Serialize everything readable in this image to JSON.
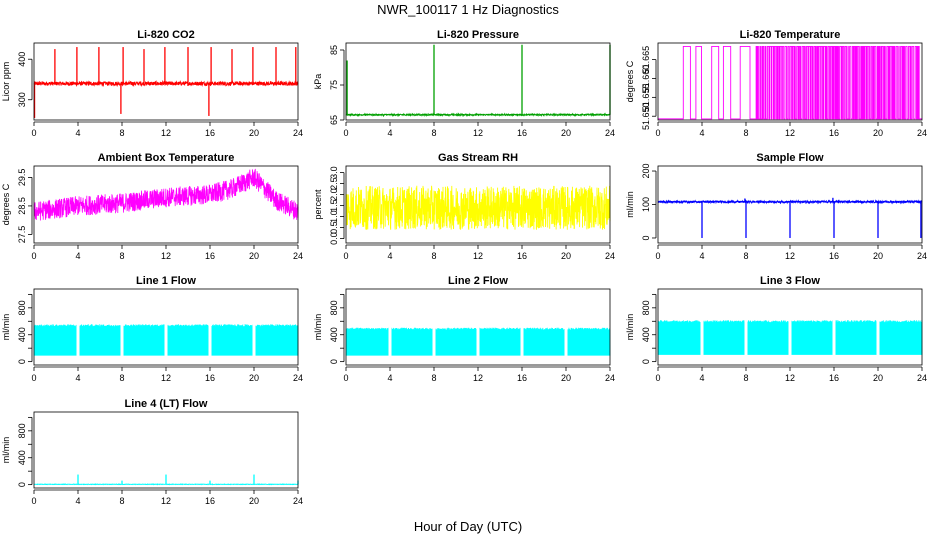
{
  "figure": {
    "title": "NWR_100117  1 Hz Diagnostics",
    "xlabel": "Hour of Day (UTC)"
  },
  "chart_data": [
    {
      "type": "line",
      "title": "Li-820 CO2",
      "ylabel": "Licor ppm",
      "color": "#ff0000",
      "xlim": [
        0,
        24
      ],
      "xticks": [
        0,
        4,
        8,
        12,
        16,
        20,
        24
      ],
      "ylim": [
        250,
        440
      ],
      "yticks": [
        300,
        400
      ],
      "ytick_labels": [
        "300",
        "400"
      ],
      "baseline": 340,
      "noise": 5,
      "spikes": [
        {
          "x": 0.05,
          "y": 255
        },
        {
          "x": 1.9,
          "y": 425
        },
        {
          "x": 3.9,
          "y": 430
        },
        {
          "x": 5.9,
          "y": 430
        },
        {
          "x": 7.9,
          "y": 265
        },
        {
          "x": 8.1,
          "y": 430
        },
        {
          "x": 10.0,
          "y": 425
        },
        {
          "x": 11.9,
          "y": 430
        },
        {
          "x": 14.0,
          "y": 430
        },
        {
          "x": 15.9,
          "y": 260
        },
        {
          "x": 16.1,
          "y": 430
        },
        {
          "x": 18.0,
          "y": 425
        },
        {
          "x": 19.9,
          "y": 430
        },
        {
          "x": 22.0,
          "y": 430
        },
        {
          "x": 23.8,
          "y": 430
        }
      ],
      "grid": false
    },
    {
      "type": "line",
      "title": "Li-820 Pressure",
      "ylabel": "kPa",
      "color": "#00a000",
      "xlim": [
        0,
        24
      ],
      "xticks": [
        0,
        4,
        8,
        12,
        16,
        20,
        24
      ],
      "ylim": [
        65,
        87
      ],
      "yticks": [
        65,
        75,
        85
      ],
      "ytick_labels": [
        "65",
        "75",
        "85"
      ],
      "baseline": 66.5,
      "noise": 0.2,
      "spikes": [
        {
          "x": 0.1,
          "y": 82
        },
        {
          "x": 8.0,
          "y": 86.5
        },
        {
          "x": 16.0,
          "y": 86.5
        },
        {
          "x": 24.0,
          "y": 86.5
        }
      ],
      "grid": false
    },
    {
      "type": "line",
      "title": "Li-820 Temperature",
      "ylabel": "degrees C",
      "color": "#ff00ff",
      "xlim": [
        0,
        24
      ],
      "xticks": [
        0,
        4,
        8,
        12,
        16,
        20,
        24
      ],
      "ylim": [
        51.649,
        51.6694
      ],
      "yticks": [
        51.65,
        51.655,
        51.66,
        51.665
      ],
      "ytick_labels": [
        "51.650",
        "51.655",
        "51.660",
        "51.665"
      ],
      "low": 51.6493,
      "high": 51.6685,
      "toggle_start": 2.3,
      "grid": false
    },
    {
      "type": "line",
      "title": "Ambient Box Temperature",
      "ylabel": "degrees C",
      "color": "#ff00ff",
      "xlim": [
        0,
        24
      ],
      "xticks": [
        0,
        4,
        8,
        12,
        16,
        20,
        24
      ],
      "ylim": [
        27.2,
        29.9
      ],
      "yticks": [
        27.5,
        28.5,
        29.5
      ],
      "ytick_labels": [
        "27.5",
        "28.5",
        "29.5"
      ],
      "trend": [
        {
          "x": 0,
          "y": 28.3
        },
        {
          "x": 4,
          "y": 28.5
        },
        {
          "x": 8,
          "y": 28.6
        },
        {
          "x": 12,
          "y": 28.8
        },
        {
          "x": 16,
          "y": 28.9
        },
        {
          "x": 18,
          "y": 29.1
        },
        {
          "x": 20,
          "y": 29.5
        },
        {
          "x": 22,
          "y": 28.7
        },
        {
          "x": 24,
          "y": 28.3
        }
      ],
      "noise": 0.35,
      "grid": false
    },
    {
      "type": "line",
      "title": "Gas Stream RH",
      "ylabel": "percent",
      "color": "#ffff00",
      "xlim": [
        0,
        24
      ],
      "xticks": [
        0,
        4,
        8,
        12,
        16,
        20,
        24
      ],
      "ylim": [
        -0.2,
        3.3
      ],
      "yticks": [
        0,
        0.5,
        1.0,
        1.5,
        2.0,
        2.5,
        3.0
      ],
      "ytick_labels": [
        "0.0",
        "0.5",
        "1.0",
        "1.5",
        "2.0",
        "2.5",
        "3.0"
      ],
      "baseline": 1.4,
      "noise": 1.0,
      "grid": false
    },
    {
      "type": "line",
      "title": "Sample Flow",
      "ylabel": "ml/min",
      "color": "#0000ff",
      "xlim": [
        0,
        24
      ],
      "xticks": [
        0,
        4,
        8,
        12,
        16,
        20,
        24
      ],
      "ylim": [
        -15,
        215
      ],
      "yticks": [
        0,
        100,
        200
      ],
      "ytick_labels": [
        "0",
        "100",
        "200"
      ],
      "baseline": 108,
      "noise": 3,
      "spikes": [
        {
          "x": 3.9,
          "y": 110
        },
        {
          "x": 4.0,
          "y": 0
        },
        {
          "x": 7.9,
          "y": 118
        },
        {
          "x": 8.0,
          "y": 0
        },
        {
          "x": 11.9,
          "y": 110
        },
        {
          "x": 12.0,
          "y": 0
        },
        {
          "x": 15.9,
          "y": 120
        },
        {
          "x": 16.0,
          "y": 0
        },
        {
          "x": 19.9,
          "y": 110
        },
        {
          "x": 20.0,
          "y": 0
        },
        {
          "x": 23.8,
          "y": 110
        },
        {
          "x": 23.9,
          "y": 0
        }
      ],
      "grid": false
    },
    {
      "type": "line",
      "title": "Line 1 Flow",
      "ylabel": "ml/min",
      "color": "#00ffff",
      "xlim": [
        0,
        24
      ],
      "xticks": [
        0,
        4,
        8,
        12,
        16,
        20,
        24
      ],
      "ylim": [
        -50,
        1080
      ],
      "yticks": [
        0,
        200,
        400,
        600,
        800,
        1000
      ],
      "ytick_labels": [
        "0",
        "",
        "400",
        "",
        "800",
        ""
      ],
      "band": [
        90,
        540
      ],
      "gaps": [
        4,
        8,
        12,
        16,
        20
      ],
      "grid": false
    },
    {
      "type": "line",
      "title": "Line 2 Flow",
      "ylabel": "ml/min",
      "color": "#00ffff",
      "xlim": [
        0,
        24
      ],
      "xticks": [
        0,
        4,
        8,
        12,
        16,
        20,
        24
      ],
      "ylim": [
        -50,
        1080
      ],
      "yticks": [
        0,
        200,
        400,
        600,
        800,
        1000
      ],
      "ytick_labels": [
        "0",
        "",
        "400",
        "",
        "800",
        ""
      ],
      "band": [
        90,
        490
      ],
      "gaps": [
        4,
        8,
        12,
        16,
        20
      ],
      "grid": false
    },
    {
      "type": "line",
      "title": "Line 3 Flow",
      "ylabel": "ml/min",
      "color": "#00ffff",
      "xlim": [
        0,
        24
      ],
      "xticks": [
        0,
        4,
        8,
        12,
        16,
        20,
        24
      ],
      "ylim": [
        -50,
        1080
      ],
      "yticks": [
        0,
        200,
        400,
        600,
        800,
        1000
      ],
      "ytick_labels": [
        "0",
        "",
        "400",
        "",
        "800",
        ""
      ],
      "band": [
        100,
        600
      ],
      "gaps": [
        4,
        8,
        12,
        16,
        20
      ],
      "grid": false
    },
    {
      "type": "line",
      "title": "Line 4 (LT) Flow",
      "ylabel": "ml/min",
      "color": "#00ffff",
      "xlim": [
        0,
        24
      ],
      "xticks": [
        0,
        4,
        8,
        12,
        16,
        20,
        24
      ],
      "ylim": [
        -50,
        1080
      ],
      "yticks": [
        0,
        200,
        400,
        600,
        800,
        1000
      ],
      "ytick_labels": [
        "0",
        "",
        "400",
        "",
        "800",
        ""
      ],
      "baseline": 5,
      "noise": 3,
      "spikes": [
        {
          "x": 4.0,
          "y": 150
        },
        {
          "x": 8.0,
          "y": 60
        },
        {
          "x": 12.0,
          "y": 150
        },
        {
          "x": 16.0,
          "y": 60
        },
        {
          "x": 20.0,
          "y": 150
        },
        {
          "x": 24.0,
          "y": 60
        }
      ],
      "grid": false
    }
  ]
}
